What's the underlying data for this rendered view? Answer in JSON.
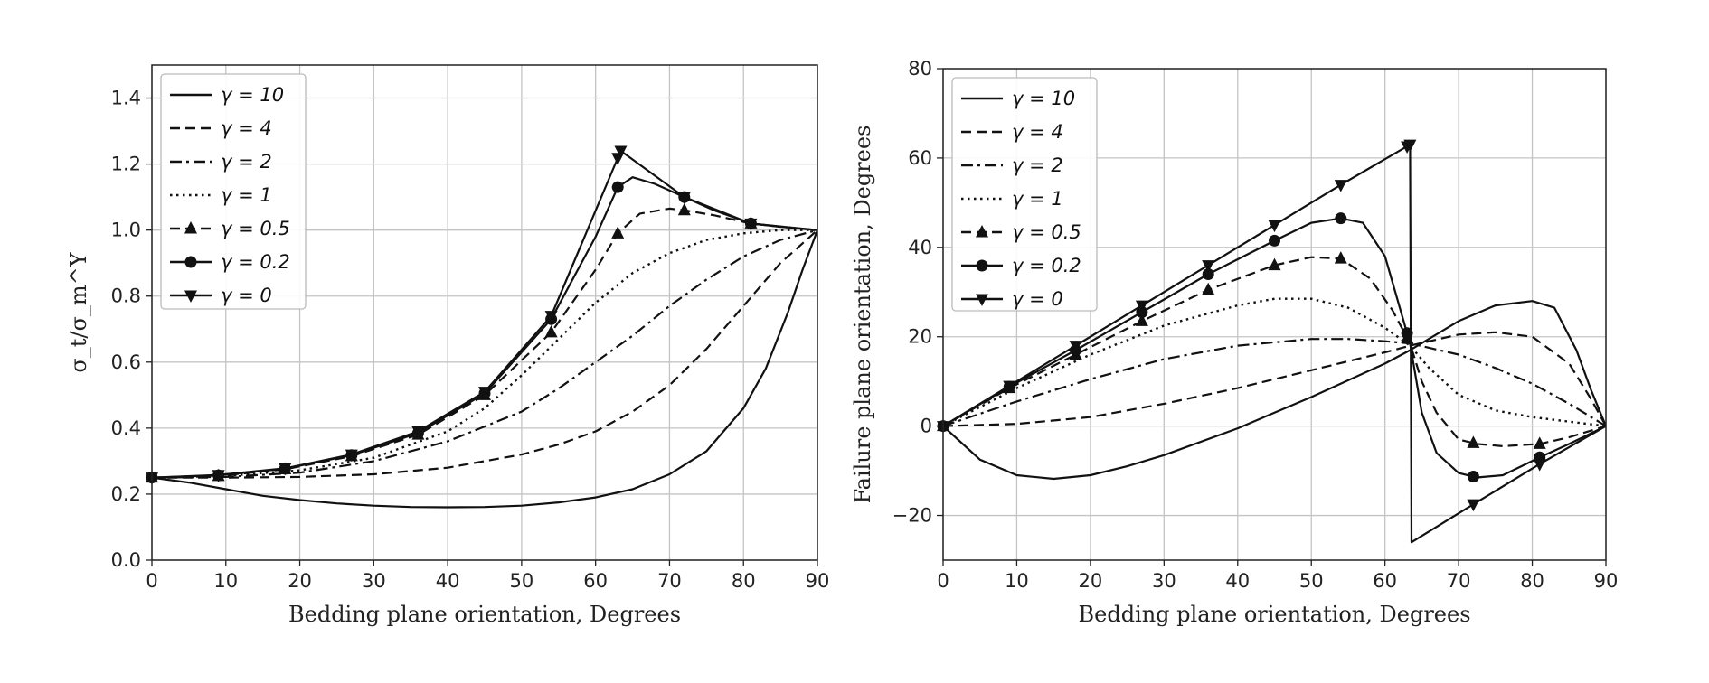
{
  "chart_data": [
    {
      "type": "line",
      "title": "",
      "xlabel": "Bedding plane orientation, Degrees",
      "ylabel": "σ_t/σ_m^Y",
      "xlim": [
        0,
        90
      ],
      "ylim": [
        0,
        1.5
      ],
      "xticks": [
        "0",
        "10",
        "20",
        "30",
        "40",
        "50",
        "60",
        "70",
        "80",
        "90"
      ],
      "yticks": [
        "0.0",
        "0.2",
        "0.4",
        "0.6",
        "0.8",
        "1.0",
        "1.2",
        "1.4"
      ],
      "grid": true,
      "legend_position": "top-left",
      "series": [
        {
          "name": "γ = 10",
          "dash": "solid",
          "marker": "none",
          "x": [
            0,
            5,
            10,
            15,
            20,
            25,
            30,
            35,
            40,
            45,
            50,
            55,
            60,
            65,
            70,
            75,
            80,
            83,
            86,
            88,
            90
          ],
          "y": [
            0.25,
            0.235,
            0.215,
            0.195,
            0.182,
            0.172,
            0.165,
            0.161,
            0.16,
            0.161,
            0.165,
            0.175,
            0.19,
            0.215,
            0.26,
            0.33,
            0.46,
            0.58,
            0.75,
            0.88,
            1.0
          ]
        },
        {
          "name": "γ = 4",
          "dash": "dashed",
          "marker": "none",
          "x": [
            0,
            10,
            20,
            30,
            40,
            50,
            55,
            60,
            65,
            70,
            75,
            80,
            85,
            90
          ],
          "y": [
            0.25,
            0.25,
            0.252,
            0.26,
            0.28,
            0.32,
            0.35,
            0.39,
            0.45,
            0.53,
            0.64,
            0.77,
            0.9,
            1.0
          ]
        },
        {
          "name": "γ = 2",
          "dash": "dashdot",
          "marker": "none",
          "x": [
            0,
            10,
            20,
            30,
            40,
            50,
            55,
            60,
            65,
            70,
            75,
            80,
            85,
            90
          ],
          "y": [
            0.25,
            0.252,
            0.265,
            0.3,
            0.36,
            0.45,
            0.52,
            0.6,
            0.68,
            0.77,
            0.85,
            0.92,
            0.97,
            1.0
          ]
        },
        {
          "name": "γ = 1",
          "dash": "dotted",
          "marker": "none",
          "x": [
            0,
            10,
            20,
            30,
            40,
            45,
            50,
            55,
            60,
            65,
            70,
            75,
            80,
            85,
            90
          ],
          "y": [
            0.25,
            0.255,
            0.272,
            0.31,
            0.39,
            0.46,
            0.56,
            0.67,
            0.78,
            0.87,
            0.93,
            0.97,
            0.99,
            1.0,
            1.0
          ]
        },
        {
          "name": "γ = 0.5",
          "dash": "dashed",
          "marker": "triangle-up",
          "x": [
            0,
            9,
            18,
            27,
            36,
            45,
            54,
            60,
            63,
            66,
            70,
            72,
            76,
            81,
            85,
            90
          ],
          "y": [
            0.25,
            0.255,
            0.275,
            0.315,
            0.38,
            0.5,
            0.69,
            0.88,
            0.99,
            1.05,
            1.065,
            1.06,
            1.045,
            1.02,
            1.01,
            1.0
          ]
        },
        {
          "name": "γ = 0.2",
          "dash": "solid",
          "marker": "circle",
          "x": [
            0,
            9,
            18,
            27,
            36,
            45,
            54,
            60,
            63,
            65,
            68,
            72,
            76,
            81,
            85,
            90
          ],
          "y": [
            0.25,
            0.257,
            0.277,
            0.318,
            0.385,
            0.505,
            0.73,
            0.98,
            1.13,
            1.16,
            1.14,
            1.1,
            1.06,
            1.02,
            1.01,
            1.0
          ]
        },
        {
          "name": "γ = 0",
          "dash": "solid",
          "marker": "triangle-down",
          "x": [
            0,
            9,
            18,
            27,
            36,
            45,
            54,
            63.4,
            72,
            81,
            90
          ],
          "y": [
            0.25,
            0.258,
            0.278,
            0.32,
            0.39,
            0.51,
            0.74,
            1.24,
            1.1,
            1.02,
            1.0
          ]
        }
      ]
    },
    {
      "type": "line",
      "title": "",
      "xlabel": "Bedding plane orientation, Degrees",
      "ylabel": "Failure plane orientation, Degrees",
      "xlim": [
        0,
        90
      ],
      "ylim": [
        -30,
        80
      ],
      "xticks": [
        "0",
        "10",
        "20",
        "30",
        "40",
        "50",
        "60",
        "70",
        "80",
        "90"
      ],
      "yticks": [
        "−20",
        "0",
        "20",
        "40",
        "60",
        "80"
      ],
      "grid": true,
      "legend_position": "top-left",
      "series": [
        {
          "name": "γ = 10",
          "dash": "solid",
          "marker": "none",
          "x": [
            0,
            5,
            10,
            15,
            20,
            25,
            30,
            40,
            50,
            60,
            63.4,
            70,
            75,
            80,
            83,
            86,
            88,
            90
          ],
          "y": [
            0,
            -7.5,
            -11,
            -11.8,
            -11,
            -9,
            -6.5,
            -0.5,
            6.5,
            14,
            17,
            23.5,
            27,
            28,
            26.5,
            17,
            8,
            0
          ]
        },
        {
          "name": "γ = 4",
          "dash": "dashed",
          "marker": "none",
          "x": [
            0,
            10,
            20,
            30,
            40,
            50,
            60,
            63.4,
            70,
            75,
            80,
            85,
            88,
            90
          ],
          "y": [
            0,
            0.5,
            2,
            5,
            8.5,
            12.5,
            16.5,
            18,
            20.5,
            21,
            20,
            14,
            6,
            0
          ]
        },
        {
          "name": "γ = 2",
          "dash": "dashdot",
          "marker": "none",
          "x": [
            0,
            10,
            20,
            30,
            40,
            50,
            55,
            60,
            63.4,
            70,
            75,
            80,
            85,
            90
          ],
          "y": [
            0,
            5.5,
            10.5,
            15,
            18,
            19.5,
            19.5,
            19,
            18.5,
            16,
            13,
            9.5,
            5,
            0
          ]
        },
        {
          "name": "γ = 1",
          "dash": "dotted",
          "marker": "none",
          "x": [
            0,
            10,
            20,
            30,
            40,
            45,
            50,
            55,
            60,
            63.4,
            66,
            70,
            75,
            80,
            85,
            90
          ],
          "y": [
            0,
            8.5,
            16,
            22.5,
            27,
            28.5,
            28.5,
            26.5,
            22,
            18,
            13,
            7,
            3.5,
            2,
            1,
            0
          ]
        },
        {
          "name": "γ = 0.5",
          "dash": "dashed",
          "marker": "triangle-up",
          "x": [
            0,
            9,
            18,
            27,
            36,
            45,
            50,
            54,
            58,
            61,
            63.4,
            65,
            67,
            70,
            72.5,
            76,
            81,
            85,
            90
          ],
          "y": [
            0,
            8.5,
            16,
            23.5,
            30.5,
            36,
            37.8,
            37.5,
            33,
            26,
            18.5,
            10,
            3,
            -3,
            -4,
            -4.5,
            -4,
            -2.5,
            0
          ]
        },
        {
          "name": "γ = 0.2",
          "dash": "solid",
          "marker": "circle",
          "x": [
            0,
            9,
            18,
            27,
            36,
            45,
            50,
            54,
            57,
            60,
            63.4,
            65,
            67,
            70,
            72.5,
            76,
            81,
            85,
            90
          ],
          "y": [
            0,
            8.8,
            17,
            25.5,
            34,
            41.5,
            45.5,
            46.5,
            45.5,
            38,
            18.5,
            3,
            -6,
            -10.5,
            -11.5,
            -11,
            -7,
            -4,
            0
          ]
        },
        {
          "name": "γ = 0",
          "dash": "solid",
          "marker": "triangle-down",
          "x": [
            0,
            9,
            18,
            27,
            36,
            45,
            54,
            63.4,
            63.6,
            72,
            81,
            90
          ],
          "y": [
            0,
            9,
            18,
            27,
            36,
            45,
            54,
            63,
            -26,
            -17.5,
            -8.5,
            0
          ]
        }
      ]
    }
  ]
}
